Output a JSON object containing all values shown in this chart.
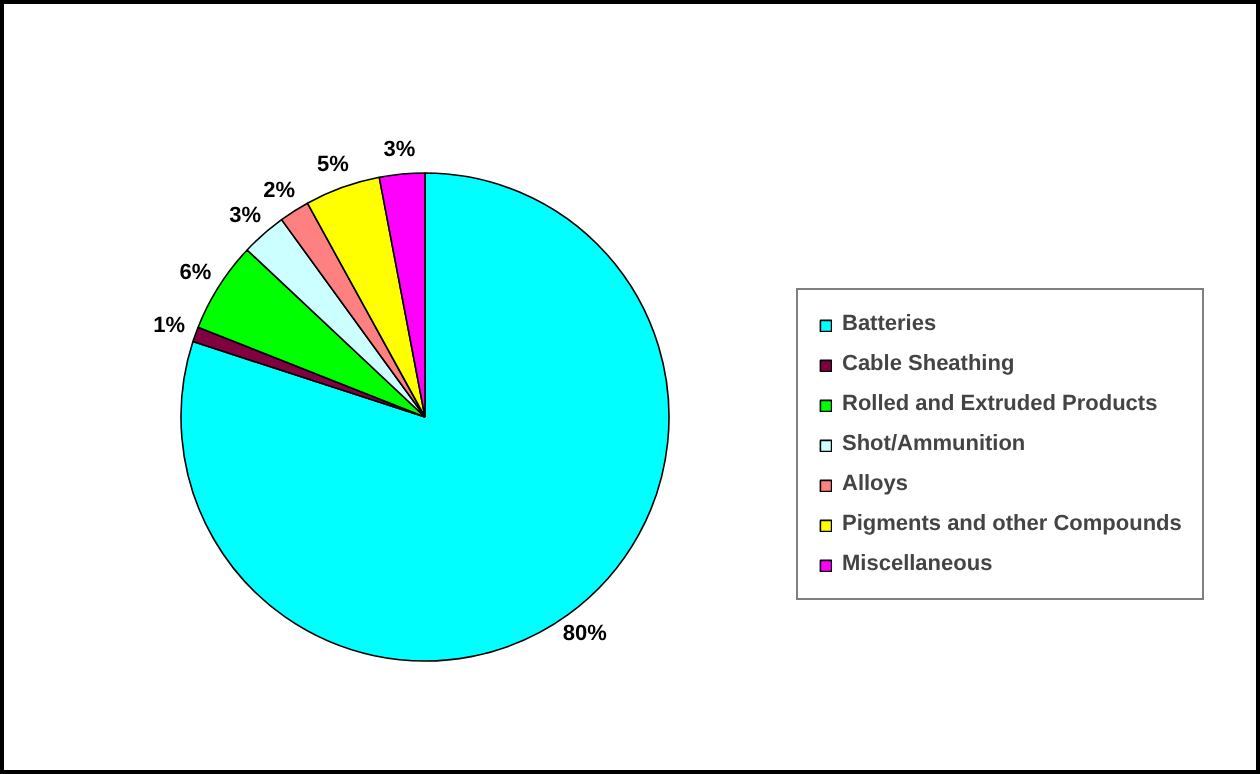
{
  "chart_data": {
    "type": "pie",
    "categories": [
      "Batteries",
      "Cable Sheathing",
      "Rolled and Extruded Products",
      "Shot/Ammunition",
      "Alloys",
      "Pigments and other Compounds",
      "Miscellaneous"
    ],
    "values": [
      80,
      1,
      6,
      3,
      2,
      5,
      3
    ],
    "value_labels": [
      "80%",
      "1%",
      "6%",
      "3%",
      "2%",
      "5%",
      "3%"
    ],
    "colors": [
      "#00ffff",
      "#800040",
      "#00ff00",
      "#ccffff",
      "#ff8080",
      "#ffff00",
      "#ff00ff"
    ],
    "legend": "right"
  }
}
